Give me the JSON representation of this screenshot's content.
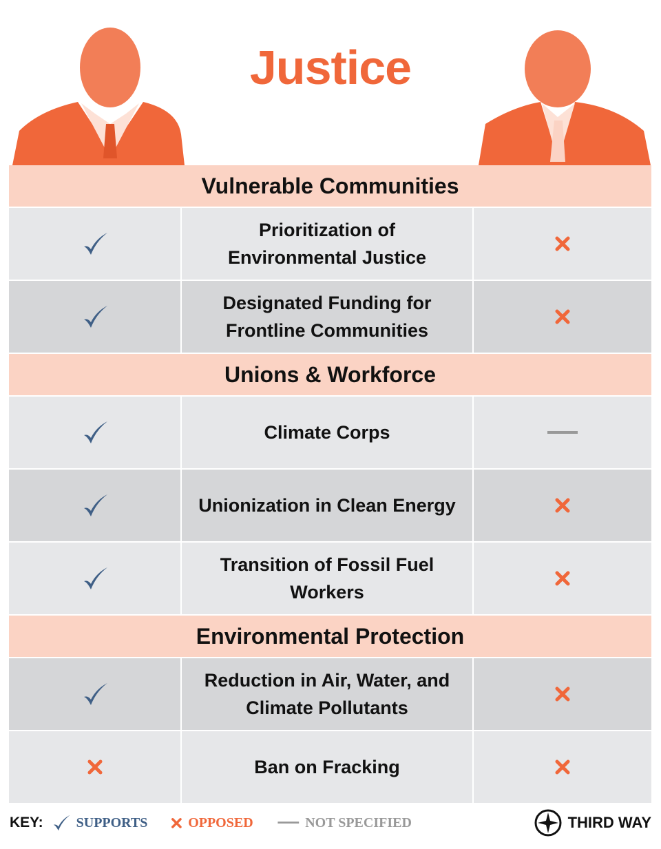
{
  "header": {
    "title": "Justice"
  },
  "sections": [
    {
      "title": "Vulnerable Communities",
      "rows": [
        {
          "label": "Prioritization of Environmental Justice",
          "left": "SUPPORTS",
          "right": "OPPOSED"
        },
        {
          "label": "Designated Funding for Frontline Communities",
          "left": "SUPPORTS",
          "right": "OPPOSED"
        }
      ]
    },
    {
      "title": "Unions & Workforce",
      "rows": [
        {
          "label": "Climate Corps",
          "left": "SUPPORTS",
          "right": "NOT SPECIFIED"
        },
        {
          "label": "Unionization in Clean Energy",
          "left": "SUPPORTS",
          "right": "OPPOSED"
        },
        {
          "label": "Transition of Fossil Fuel Workers",
          "left": "SUPPORTS",
          "right": "OPPOSED"
        }
      ]
    },
    {
      "title": "Environmental Protection",
      "rows": [
        {
          "label": "Reduction in Air, Water, and Climate Pollutants",
          "left": "SUPPORTS",
          "right": "OPPOSED"
        },
        {
          "label": "Ban on Fracking",
          "left": "OPPOSED",
          "right": "OPPOSED"
        }
      ]
    }
  ],
  "key": {
    "title": "KEY:",
    "items": [
      {
        "label": "SUPPORTS"
      },
      {
        "label": "OPPOSED"
      },
      {
        "label": "NOT SPECIFIED"
      }
    ]
  },
  "logo": {
    "text": "THIRD WAY"
  }
}
